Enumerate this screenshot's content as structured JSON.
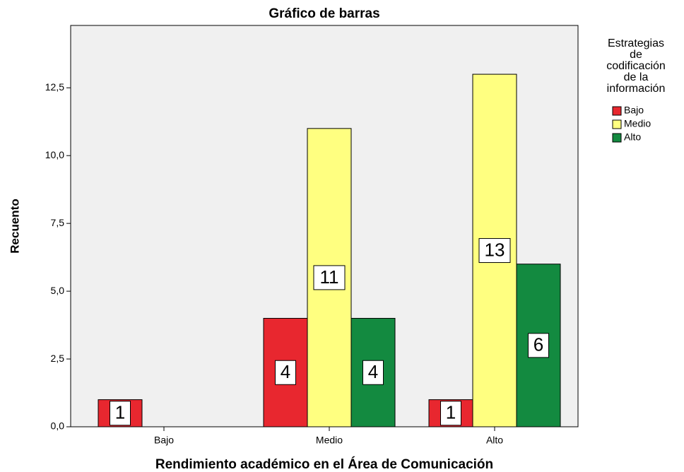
{
  "chart_data": {
    "type": "bar",
    "title": "Gráfico de barras",
    "x_label": "Rendimiento académico en el Área de Comunicación",
    "y_label": "Recuento",
    "legend_title": [
      "Estrategias",
      "de",
      "codificación",
      "de la",
      "información"
    ],
    "categories": [
      "Bajo",
      "Medio",
      "Alto"
    ],
    "series": [
      {
        "name": "Bajo",
        "color": "#e8272f",
        "values": [
          1,
          4,
          1
        ]
      },
      {
        "name": "Medio",
        "color": "#ffff80",
        "values": [
          0,
          11,
          13
        ]
      },
      {
        "name": "Alto",
        "color": "#138a40",
        "values": [
          0,
          4,
          6
        ]
      }
    ],
    "ylim": [
      0,
      14.8
    ],
    "yticks": [
      {
        "value": 0,
        "label": "0,0"
      },
      {
        "value": 2.5,
        "label": "2,5"
      },
      {
        "value": 5,
        "label": "5,0"
      },
      {
        "value": 7.5,
        "label": "7,5"
      },
      {
        "value": 10,
        "label": "10,0"
      },
      {
        "value": 12.5,
        "label": "12,5"
      }
    ],
    "legend": "right"
  }
}
